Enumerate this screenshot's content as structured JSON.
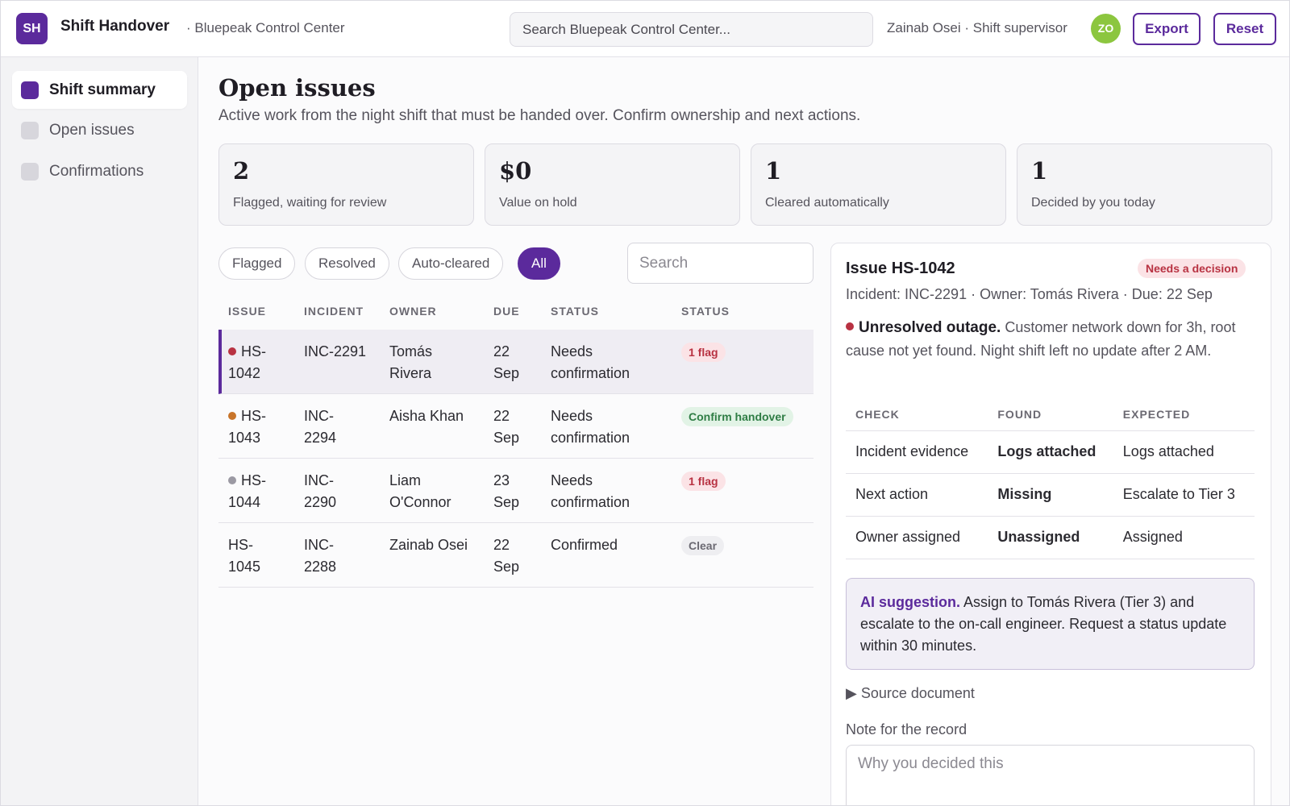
{
  "header": {
    "logo_text": "SH",
    "app_title": "Shift Handover",
    "org": "· Bluepeak Control Center",
    "search_placeholder": "Search Bluepeak Control Center...",
    "user": "Zainab Osei · Shift supervisor",
    "avatar_initials": "ZO",
    "export_label": "Export",
    "reset_label": "Reset"
  },
  "sidebar": {
    "items": [
      {
        "label": "Shift summary",
        "active": true
      },
      {
        "label": "Open issues",
        "active": false
      },
      {
        "label": "Confirmations",
        "active": false
      }
    ]
  },
  "main": {
    "title": "Open issues",
    "subtitle": "Active work from the night shift that must be handed over. Confirm ownership and next actions.",
    "stats": [
      {
        "value": "2",
        "caption": "Flagged, waiting for review"
      },
      {
        "value": "$0",
        "caption": "Value on hold"
      },
      {
        "value": "1",
        "caption": "Cleared automatically"
      },
      {
        "value": "1",
        "caption": "Decided by you today"
      }
    ],
    "filters": [
      "Flagged",
      "Resolved",
      "Auto-cleared",
      "All"
    ],
    "active_filter": "All",
    "list_search_placeholder": "Search",
    "columns": [
      "ISSUE",
      "INCIDENT",
      "OWNER",
      "DUE",
      "STATUS",
      "STATUS"
    ],
    "rows": [
      {
        "issue": "HS-1042",
        "incident": "INC-2291",
        "owner": "Tomás Rivera",
        "due": "22 Sep",
        "status": "Needs confirmation",
        "badge": "1 flag",
        "badge_kind": "red",
        "dot_color": "#b83242",
        "selected": true
      },
      {
        "issue": "HS-1043",
        "incident": "INC-2294",
        "owner": "Aisha Khan",
        "due": "22 Sep",
        "status": "Needs confirmation",
        "badge": "Confirm handover",
        "badge_kind": "green",
        "dot_color": "#c8742a",
        "selected": false
      },
      {
        "issue": "HS-1044",
        "incident": "INC-2290",
        "owner": "Liam O'Connor",
        "due": "23 Sep",
        "status": "Needs confirmation",
        "badge": "1 flag",
        "badge_kind": "red",
        "dot_color": "#9b99a3",
        "selected": false
      },
      {
        "issue": "HS-1045",
        "incident": "INC-2288",
        "owner": "Zainab Osei",
        "due": "22 Sep",
        "status": "Confirmed",
        "badge": "Clear",
        "badge_kind": "grey",
        "dot_color": "",
        "selected": false
      }
    ]
  },
  "detail": {
    "title": "Issue HS-1042",
    "badge": "Needs a decision",
    "meta": "Incident: INC-2291 · Owner: Tomás Rivera · Due: 22 Sep",
    "summary_bold": "Unresolved outage.",
    "summary_text": " Customer network down for 3h, root cause not yet found. Night shift left no update after 2 AM.",
    "check_columns": [
      "CHECK",
      "FOUND",
      "EXPECTED"
    ],
    "checks": [
      {
        "check": "Incident evidence",
        "found": "Logs attached",
        "found_ok": true,
        "expected": "Logs attached"
      },
      {
        "check": "Next action",
        "found": "Missing",
        "found_ok": false,
        "expected": "Escalate to Tier 3"
      },
      {
        "check": "Owner assigned",
        "found": "Unassigned",
        "found_ok": false,
        "expected": "Assigned"
      }
    ],
    "ai_label": "AI suggestion.",
    "ai_text": " Assign to Tomás Rivera (Tier 3) and escalate to the on-call engineer. Request a status update within 30 minutes.",
    "source_label": "▶ Source document",
    "note_label": "Note for the record",
    "note_placeholder": "Why you decided this"
  }
}
